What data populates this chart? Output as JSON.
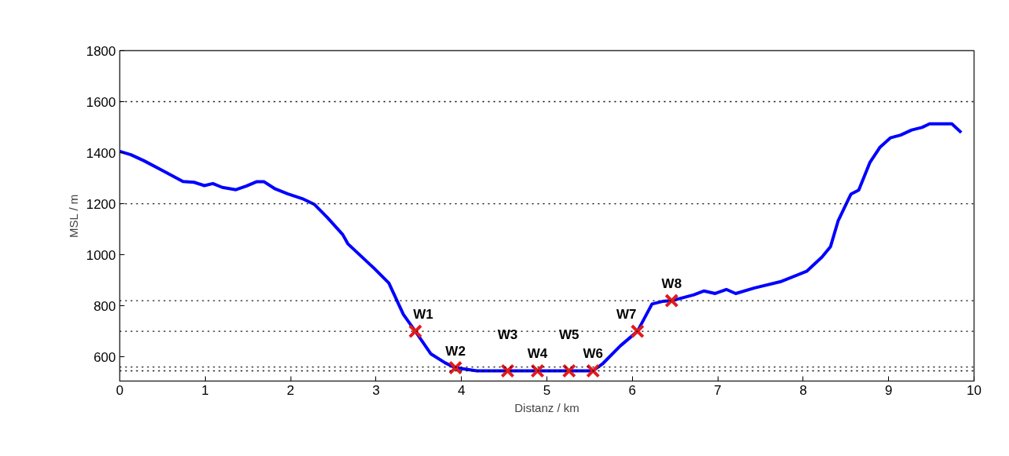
{
  "chart_data": {
    "type": "line",
    "xlabel": "Distanz / km",
    "ylabel": "MSL / m",
    "xlim": [
      0,
      10
    ],
    "ylim": [
      505,
      1800
    ],
    "xticks": [
      0,
      1,
      2,
      3,
      4,
      5,
      6,
      7,
      8,
      9,
      10
    ],
    "yticks": [
      600,
      800,
      1000,
      1200,
      1400,
      1600,
      1800
    ],
    "grid": false,
    "series": [
      {
        "color": "#0000ff",
        "line_style": "solid",
        "marker": "none",
        "x": [
          0,
          0.13,
          0.28,
          0.5,
          0.74,
          0.87,
          0.99,
          1.09,
          1.2,
          1.36,
          1.48,
          1.6,
          1.69,
          1.82,
          1.97,
          2.15,
          2.28,
          2.43,
          2.61,
          2.67,
          2.98,
          3.15,
          3.32,
          3.46,
          3.64,
          3.81,
          3.93,
          4.18,
          4.54,
          4.89,
          5.26,
          5.54,
          5.65,
          5.86,
          6.06,
          6.23,
          6.35,
          6.46,
          6.72,
          6.84,
          6.97,
          7.1,
          7.21,
          7.43,
          7.73,
          8.04,
          8.22,
          8.32,
          8.41,
          8.5,
          8.56,
          8.65,
          8.78,
          8.9,
          9.02,
          9.14,
          9.27,
          9.39,
          9.48,
          9.74,
          9.85
        ],
        "values": [
          1405,
          1392,
          1369,
          1330,
          1287,
          1284,
          1271,
          1279,
          1264,
          1255,
          1269,
          1286,
          1286,
          1258,
          1238,
          1218,
          1197,
          1146,
          1079,
          1043,
          946,
          889,
          766,
          700,
          612,
          576,
          557,
          545,
          545,
          545,
          545,
          545,
          572,
          643,
          700,
          807,
          817,
          820,
          843,
          858,
          848,
          864,
          848,
          870,
          894,
          935,
          991,
          1032,
          1134,
          1197,
          1238,
          1253,
          1361,
          1422,
          1458,
          1469,
          1489,
          1499,
          1513,
          1513,
          1479
        ]
      },
      {
        "type": "scatter",
        "color": "#e31a1c",
        "marker": "cross",
        "x": [
          3.46,
          3.93,
          4.54,
          4.89,
          5.26,
          5.54,
          6.06,
          6.46
        ],
        "values": [
          700,
          557,
          545,
          545,
          545,
          545,
          700,
          820
        ]
      }
    ],
    "ref_lines": [
      {
        "axis": "y",
        "value": 1600,
        "color": "#000000",
        "line_style": "dotted"
      },
      {
        "axis": "y",
        "value": 1200,
        "color": "#000000",
        "line_style": "dotted"
      },
      {
        "axis": "y",
        "value": 820,
        "color": "#000000",
        "line_style": "dotted"
      },
      {
        "axis": "y",
        "value": 700,
        "color": "#000000",
        "line_style": "dotted"
      },
      {
        "axis": "y",
        "value": 560,
        "color": "#000000",
        "line_style": "dotted"
      },
      {
        "axis": "y",
        "value": 545,
        "color": "#000000",
        "line_style": "dotted"
      }
    ],
    "annotations": [
      {
        "text": "W1",
        "x": 3.46,
        "y": 700
      },
      {
        "text": "W2",
        "x": 3.93,
        "y": 557
      },
      {
        "text": "W3",
        "x": 4.54,
        "y": 545
      },
      {
        "text": "W4",
        "x": 4.89,
        "y": 545
      },
      {
        "text": "W5",
        "x": 5.26,
        "y": 545
      },
      {
        "text": "W6",
        "x": 5.54,
        "y": 545
      },
      {
        "text": "W7",
        "x": 6.06,
        "y": 700
      },
      {
        "text": "W8",
        "x": 6.46,
        "y": 820
      }
    ]
  }
}
